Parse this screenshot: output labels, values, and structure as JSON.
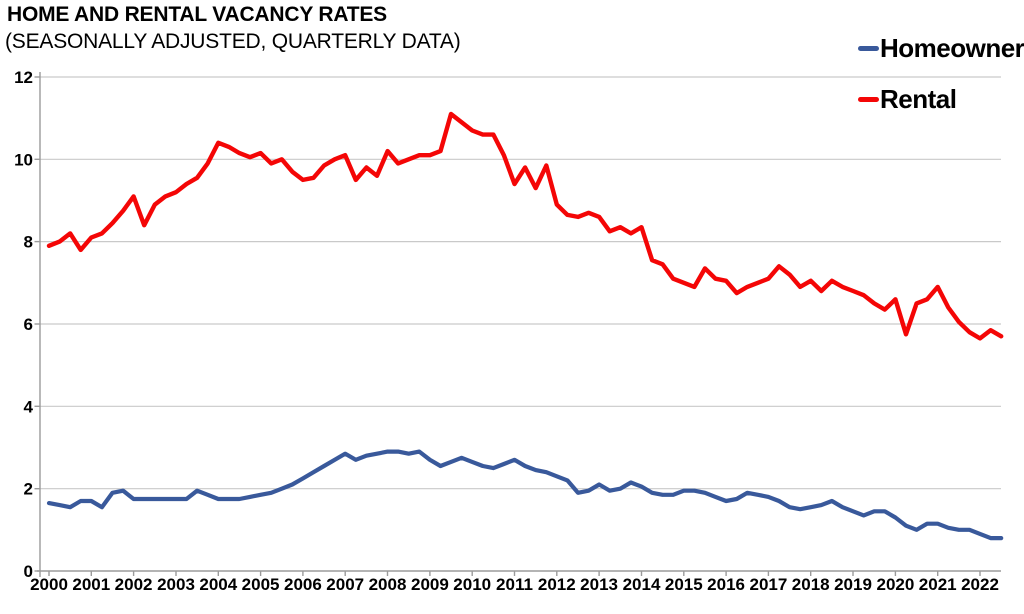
{
  "header": {
    "title": "HOME AND RENTAL VACANCY RATES",
    "subtitle": "(SEASONALLY ADJUSTED, QUARTERLY DATA)"
  },
  "legend": {
    "position": "top-right",
    "items": [
      {
        "label": "Homeowner",
        "color": "#39599b"
      },
      {
        "label": "Rental",
        "color": "#f40606"
      }
    ]
  },
  "chart_data": {
    "type": "line",
    "title": "HOME AND RENTAL VACANCY RATES",
    "subtitle": "(SEASONALLY ADJUSTED, QUARTERLY DATA)",
    "frequency": "quarterly",
    "x_start": "2000 Q1",
    "x_end": "2022 Q3",
    "xlabel": "",
    "ylabel": "",
    "ylim": [
      0,
      12
    ],
    "y_ticks": [
      0,
      2,
      4,
      6,
      8,
      10,
      12
    ],
    "y_tick_labels": [
      "0",
      "2",
      "4",
      "6",
      "8",
      "10",
      "12"
    ],
    "x_tick_labels": [
      "2000",
      "2001",
      "2002",
      "2003",
      "2004",
      "2005",
      "2006",
      "2007",
      "2008",
      "2009",
      "2010",
      "2011",
      "2012",
      "2013",
      "2014",
      "2015",
      "2016",
      "2017",
      "2018",
      "2019",
      "2020",
      "2021",
      "2022"
    ],
    "grid": "horizontal",
    "legend_position": "top-right",
    "axis_color": "#9b9b9b",
    "gridline_color": "#c9c9c9",
    "series": [
      {
        "name": "Homeowner",
        "color": "#39599b",
        "line_width": 4.2,
        "values": [
          1.65,
          1.6,
          1.55,
          1.7,
          1.7,
          1.55,
          1.9,
          1.95,
          1.75,
          1.75,
          1.75,
          1.75,
          1.75,
          1.75,
          1.95,
          1.85,
          1.75,
          1.75,
          1.75,
          1.8,
          1.85,
          1.9,
          2.0,
          2.1,
          2.25,
          2.4,
          2.55,
          2.7,
          2.85,
          2.7,
          2.8,
          2.85,
          2.9,
          2.9,
          2.85,
          2.9,
          2.7,
          2.55,
          2.65,
          2.75,
          2.65,
          2.55,
          2.5,
          2.6,
          2.7,
          2.55,
          2.45,
          2.4,
          2.3,
          2.2,
          1.9,
          1.95,
          2.1,
          1.95,
          2.0,
          2.15,
          2.05,
          1.9,
          1.85,
          1.85,
          1.95,
          1.95,
          1.9,
          1.8,
          1.7,
          1.75,
          1.9,
          1.85,
          1.8,
          1.7,
          1.55,
          1.5,
          1.55,
          1.6,
          1.7,
          1.55,
          1.45,
          1.35,
          1.45,
          1.45,
          1.3,
          1.1,
          1.0,
          1.15,
          1.15,
          1.05,
          1.0,
          1.0,
          0.9,
          0.8,
          0.8
        ]
      },
      {
        "name": "Rental",
        "color": "#f40606",
        "line_width": 4.4,
        "values": [
          7.9,
          8.0,
          8.2,
          7.8,
          8.1,
          8.2,
          8.45,
          8.75,
          9.1,
          8.4,
          8.9,
          9.1,
          9.2,
          9.4,
          9.55,
          9.9,
          10.4,
          10.3,
          10.15,
          10.05,
          10.15,
          9.9,
          10.0,
          9.7,
          9.5,
          9.55,
          9.85,
          10.0,
          10.1,
          9.5,
          9.8,
          9.6,
          10.2,
          9.9,
          10.0,
          10.1,
          10.1,
          10.2,
          11.1,
          10.9,
          10.7,
          10.6,
          10.6,
          10.1,
          9.4,
          9.8,
          9.3,
          9.85,
          8.9,
          8.65,
          8.6,
          8.7,
          8.6,
          8.25,
          8.35,
          8.2,
          8.35,
          7.55,
          7.45,
          7.1,
          7.0,
          6.9,
          7.35,
          7.1,
          7.05,
          6.75,
          6.9,
          7.0,
          7.1,
          7.4,
          7.2,
          6.9,
          7.05,
          6.8,
          7.05,
          6.9,
          6.8,
          6.7,
          6.5,
          6.35,
          6.6,
          5.75,
          6.5,
          6.6,
          6.9,
          6.4,
          6.05,
          5.8,
          5.65,
          5.85,
          5.7
        ]
      }
    ]
  }
}
